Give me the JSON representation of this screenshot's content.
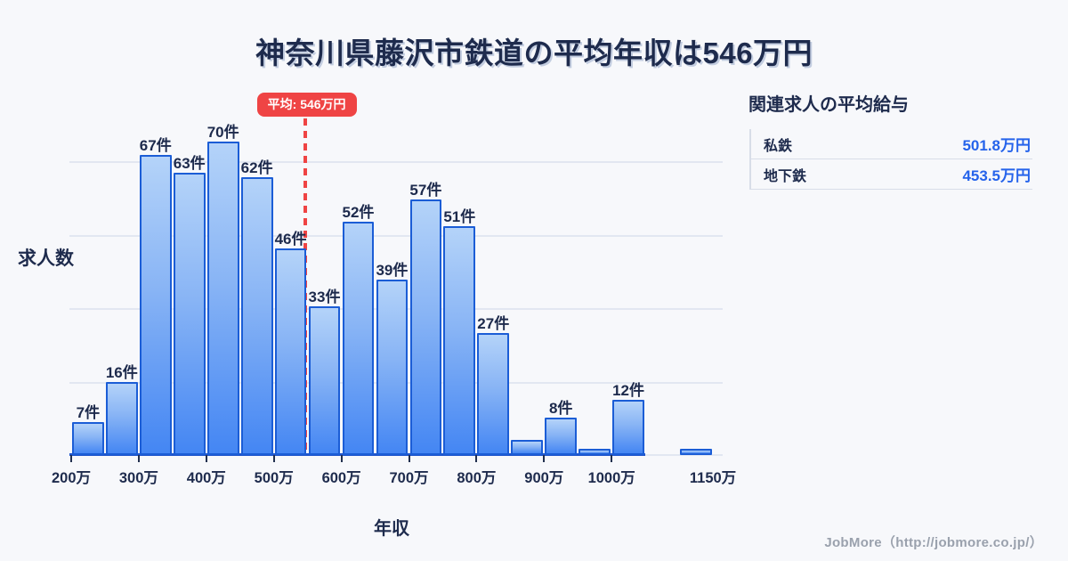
{
  "title": "神奈川県藤沢市鉄道の平均年収は546万円",
  "chart_data": {
    "type": "bar",
    "title": "神奈川県藤沢市鉄道の平均年収は546万円",
    "xlabel": "年収",
    "ylabel": "求人数",
    "x_unit": "万円",
    "y_unit": "件",
    "ylim": [
      0,
      75
    ],
    "grid": "horizontal",
    "bins": [
      {
        "start": 200,
        "end": 250,
        "count": 7,
        "label": "7件"
      },
      {
        "start": 250,
        "end": 300,
        "count": 16,
        "label": "16件"
      },
      {
        "start": 300,
        "end": 350,
        "count": 67,
        "label": "67件"
      },
      {
        "start": 350,
        "end": 400,
        "count": 63,
        "label": "63件"
      },
      {
        "start": 400,
        "end": 450,
        "count": 70,
        "label": "70件"
      },
      {
        "start": 450,
        "end": 500,
        "count": 62,
        "label": "62件"
      },
      {
        "start": 500,
        "end": 550,
        "count": 46,
        "label": "46件"
      },
      {
        "start": 550,
        "end": 600,
        "count": 33,
        "label": "33件"
      },
      {
        "start": 600,
        "end": 650,
        "count": 52,
        "label": "52件"
      },
      {
        "start": 650,
        "end": 700,
        "count": 39,
        "label": "39件"
      },
      {
        "start": 700,
        "end": 750,
        "count": 57,
        "label": "57件"
      },
      {
        "start": 750,
        "end": 800,
        "count": 51,
        "label": "51件"
      },
      {
        "start": 800,
        "end": 850,
        "count": 27,
        "label": "27件"
      },
      {
        "start": 850,
        "end": 900,
        "count": 3,
        "label": ""
      },
      {
        "start": 900,
        "end": 950,
        "count": 8,
        "label": "8件"
      },
      {
        "start": 950,
        "end": 1000,
        "count": 1,
        "label": ""
      },
      {
        "start": 1000,
        "end": 1050,
        "count": 12,
        "label": "12件"
      },
      {
        "start": 1100,
        "end": 1150,
        "count": 1,
        "label": ""
      }
    ],
    "x_ticks": [
      {
        "label": "200万",
        "value": 200,
        "tick": true
      },
      {
        "label": "300万",
        "value": 300,
        "tick": true
      },
      {
        "label": "400万",
        "value": 400,
        "tick": true
      },
      {
        "label": "500万",
        "value": 500,
        "tick": true
      },
      {
        "label": "600万",
        "value": 600,
        "tick": true
      },
      {
        "label": "700万",
        "value": 700,
        "tick": true
      },
      {
        "label": "800万",
        "value": 800,
        "tick": true
      },
      {
        "label": "900万",
        "value": 900,
        "tick": true
      },
      {
        "label": "1000万",
        "value": 1000,
        "tick": true
      },
      {
        "label": "1150万",
        "value": 1150,
        "tick": false
      }
    ],
    "average": {
      "value": 546,
      "label": "平均: 546万円"
    }
  },
  "side_panel": {
    "heading": "関連求人の平均給与",
    "rows": [
      {
        "label": "私鉄",
        "value": "501.8万円"
      },
      {
        "label": "地下鉄",
        "value": "453.5万円"
      }
    ]
  },
  "footer": {
    "credit": "JobMore（http://jobmore.co.jp/）"
  },
  "colors": {
    "background": "#f7f8fb",
    "text_dark": "#1e2b4d",
    "bar_border": "#1b5dd6",
    "bar_fill_top": "#b4d3f9",
    "bar_fill_bottom": "#4486f3",
    "axis_blue": "#2156cb",
    "gridline": "#e2e7f1",
    "average_red": "#ef4444",
    "value_blue": "#2563eb",
    "credit_grey": "#9aa1ad"
  }
}
